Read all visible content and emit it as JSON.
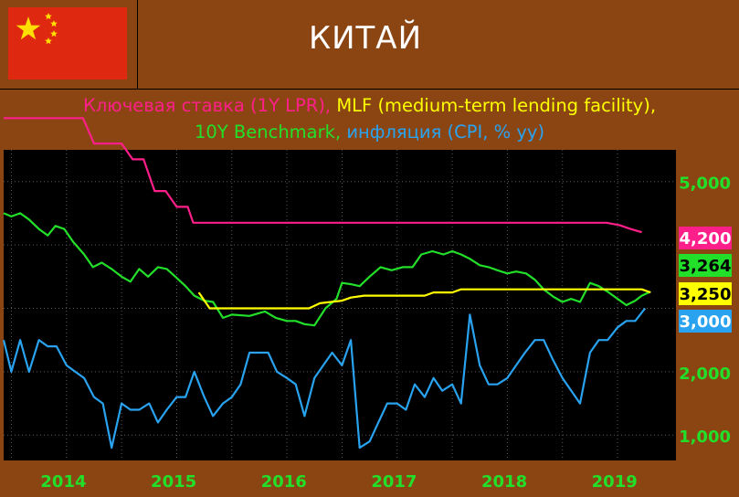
{
  "header": {
    "title": "КИТАЙ"
  },
  "subtitle": {
    "line1_pink": "Ключевая ставка (1Y LPR),",
    "line1_yellow": "MLF (medium-term lending facility),",
    "line2_green": "10Y Benchmark,",
    "line2_blue": "инфляция (CPI, % yy)"
  },
  "colors": {
    "background": "#8b4513",
    "plot_background": "#000000",
    "key_rate": "#ff1f8a",
    "mlf": "#ffff00",
    "bond_10y": "#22e02a",
    "cpi": "#29a3f0",
    "flag_red": "#de2910",
    "flag_star": "#ffde00"
  },
  "chart_data": {
    "type": "line",
    "x_unit": "year (decimal)",
    "xlim": [
      2013.93,
      2020.03
    ],
    "ylim": [
      0.6,
      5.5
    ],
    "grid": true,
    "x_tick_labels": [
      {
        "value": 2014.0,
        "label": "2014"
      },
      {
        "value": 2015.0,
        "label": "2015"
      },
      {
        "value": 2016.0,
        "label": "2016"
      },
      {
        "value": 2017.0,
        "label": "2017"
      },
      {
        "value": 2018.0,
        "label": "2018"
      },
      {
        "value": 2019.0,
        "label": "2019"
      }
    ],
    "y_tick_labels": [
      {
        "value": 1.0,
        "label": "1,000"
      },
      {
        "value": 2.0,
        "label": "2,000"
      },
      {
        "value": 5.0,
        "label": "5,000"
      }
    ],
    "y_gridlines": [
      1.0,
      2.0,
      3.0,
      4.0,
      5.0
    ],
    "x_gridlines": [
      2014.0,
      2014.5,
      2015.0,
      2015.5,
      2016.0,
      2016.5,
      2017.0,
      2017.5,
      2018.0,
      2018.5,
      2019.0,
      2019.5
    ],
    "last_value_labels": [
      {
        "series": "key_rate",
        "value": 4.2,
        "label": "4,200"
      },
      {
        "series": "bond_10y",
        "value": 3.264,
        "label": "3,264"
      },
      {
        "series": "mlf",
        "value": 3.25,
        "label": "3,250"
      },
      {
        "series": "cpi",
        "value": 3.0,
        "label": "3,000"
      }
    ],
    "series": [
      {
        "key": "key_rate",
        "points": [
          [
            2013.93,
            6.0
          ],
          [
            2014.1,
            6.0
          ],
          [
            2014.4,
            6.0
          ],
          [
            2014.65,
            6.0
          ],
          [
            2014.75,
            5.6
          ],
          [
            2015.0,
            5.6
          ],
          [
            2015.1,
            5.35
          ],
          [
            2015.2,
            5.35
          ],
          [
            2015.3,
            4.85
          ],
          [
            2015.4,
            4.85
          ],
          [
            2015.5,
            4.6
          ],
          [
            2015.6,
            4.6
          ],
          [
            2015.65,
            4.35
          ],
          [
            2016.0,
            4.35
          ],
          [
            2017.0,
            4.35
          ],
          [
            2018.0,
            4.35
          ],
          [
            2019.0,
            4.35
          ],
          [
            2019.4,
            4.35
          ],
          [
            2019.52,
            4.31
          ],
          [
            2019.62,
            4.25
          ],
          [
            2019.72,
            4.2
          ]
        ]
      },
      {
        "key": "bond_10y",
        "points": [
          [
            2013.93,
            4.5
          ],
          [
            2014.0,
            4.45
          ],
          [
            2014.08,
            4.5
          ],
          [
            2014.16,
            4.4
          ],
          [
            2014.25,
            4.25
          ],
          [
            2014.33,
            4.15
          ],
          [
            2014.4,
            4.3
          ],
          [
            2014.48,
            4.25
          ],
          [
            2014.56,
            4.05
          ],
          [
            2014.66,
            3.85
          ],
          [
            2014.74,
            3.65
          ],
          [
            2014.82,
            3.72
          ],
          [
            2014.91,
            3.62
          ],
          [
            2015.0,
            3.5
          ],
          [
            2015.08,
            3.42
          ],
          [
            2015.16,
            3.62
          ],
          [
            2015.24,
            3.5
          ],
          [
            2015.33,
            3.65
          ],
          [
            2015.41,
            3.62
          ],
          [
            2015.5,
            3.48
          ],
          [
            2015.58,
            3.35
          ],
          [
            2015.66,
            3.2
          ],
          [
            2015.75,
            3.12
          ],
          [
            2015.83,
            3.1
          ],
          [
            2015.92,
            2.85
          ],
          [
            2016.0,
            2.9
          ],
          [
            2016.16,
            2.88
          ],
          [
            2016.3,
            2.95
          ],
          [
            2016.4,
            2.85
          ],
          [
            2016.5,
            2.8
          ],
          [
            2016.58,
            2.8
          ],
          [
            2016.66,
            2.75
          ],
          [
            2016.75,
            2.73
          ],
          [
            2016.85,
            3.0
          ],
          [
            2016.95,
            3.15
          ],
          [
            2017.0,
            3.4
          ],
          [
            2017.08,
            3.38
          ],
          [
            2017.16,
            3.35
          ],
          [
            2017.25,
            3.5
          ],
          [
            2017.35,
            3.65
          ],
          [
            2017.45,
            3.6
          ],
          [
            2017.55,
            3.65
          ],
          [
            2017.64,
            3.65
          ],
          [
            2017.72,
            3.85
          ],
          [
            2017.82,
            3.9
          ],
          [
            2017.92,
            3.85
          ],
          [
            2018.0,
            3.9
          ],
          [
            2018.08,
            3.85
          ],
          [
            2018.16,
            3.78
          ],
          [
            2018.25,
            3.68
          ],
          [
            2018.33,
            3.65
          ],
          [
            2018.41,
            3.6
          ],
          [
            2018.5,
            3.55
          ],
          [
            2018.58,
            3.58
          ],
          [
            2018.67,
            3.55
          ],
          [
            2018.75,
            3.45
          ],
          [
            2018.83,
            3.3
          ],
          [
            2018.92,
            3.18
          ],
          [
            2019.0,
            3.1
          ],
          [
            2019.08,
            3.15
          ],
          [
            2019.16,
            3.1
          ],
          [
            2019.25,
            3.4
          ],
          [
            2019.33,
            3.35
          ],
          [
            2019.42,
            3.25
          ],
          [
            2019.5,
            3.15
          ],
          [
            2019.58,
            3.05
          ],
          [
            2019.66,
            3.12
          ],
          [
            2019.72,
            3.2
          ],
          [
            2019.8,
            3.264
          ]
        ]
      },
      {
        "key": "mlf",
        "points": [
          [
            2015.7,
            3.25
          ],
          [
            2015.8,
            3.0
          ],
          [
            2016.0,
            3.0
          ],
          [
            2016.5,
            3.0
          ],
          [
            2016.7,
            3.0
          ],
          [
            2016.8,
            3.08
          ],
          [
            2017.0,
            3.12
          ],
          [
            2017.08,
            3.17
          ],
          [
            2017.2,
            3.2
          ],
          [
            2017.75,
            3.2
          ],
          [
            2017.83,
            3.25
          ],
          [
            2018.0,
            3.25
          ],
          [
            2018.08,
            3.3
          ],
          [
            2018.5,
            3.3
          ],
          [
            2019.0,
            3.3
          ],
          [
            2019.25,
            3.3
          ],
          [
            2019.72,
            3.3
          ],
          [
            2019.8,
            3.25
          ]
        ]
      },
      {
        "key": "cpi",
        "points": [
          [
            2013.93,
            2.5
          ],
          [
            2014.0,
            2.0
          ],
          [
            2014.08,
            2.5
          ],
          [
            2014.16,
            2.0
          ],
          [
            2014.25,
            2.5
          ],
          [
            2014.33,
            2.4
          ],
          [
            2014.41,
            2.4
          ],
          [
            2014.5,
            2.1
          ],
          [
            2014.58,
            2.0
          ],
          [
            2014.66,
            1.9
          ],
          [
            2014.75,
            1.6
          ],
          [
            2014.83,
            1.5
          ],
          [
            2014.91,
            0.8
          ],
          [
            2015.0,
            1.5
          ],
          [
            2015.08,
            1.4
          ],
          [
            2015.16,
            1.4
          ],
          [
            2015.25,
            1.5
          ],
          [
            2015.33,
            1.2
          ],
          [
            2015.41,
            1.4
          ],
          [
            2015.5,
            1.6
          ],
          [
            2015.58,
            1.6
          ],
          [
            2015.66,
            2.0
          ],
          [
            2015.75,
            1.6
          ],
          [
            2015.83,
            1.3
          ],
          [
            2015.92,
            1.5
          ],
          [
            2016.0,
            1.6
          ],
          [
            2016.08,
            1.8
          ],
          [
            2016.16,
            2.3
          ],
          [
            2016.25,
            2.3
          ],
          [
            2016.33,
            2.3
          ],
          [
            2016.41,
            2.0
          ],
          [
            2016.5,
            1.9
          ],
          [
            2016.58,
            1.8
          ],
          [
            2016.66,
            1.3
          ],
          [
            2016.75,
            1.9
          ],
          [
            2016.83,
            2.1
          ],
          [
            2016.91,
            2.3
          ],
          [
            2017.0,
            2.1
          ],
          [
            2017.08,
            2.5
          ],
          [
            2017.16,
            0.8
          ],
          [
            2017.25,
            0.9
          ],
          [
            2017.33,
            1.2
          ],
          [
            2017.41,
            1.5
          ],
          [
            2017.5,
            1.5
          ],
          [
            2017.58,
            1.4
          ],
          [
            2017.66,
            1.8
          ],
          [
            2017.75,
            1.6
          ],
          [
            2017.83,
            1.9
          ],
          [
            2017.91,
            1.7
          ],
          [
            2018.0,
            1.8
          ],
          [
            2018.08,
            1.5
          ],
          [
            2018.16,
            2.9
          ],
          [
            2018.25,
            2.1
          ],
          [
            2018.33,
            1.8
          ],
          [
            2018.41,
            1.8
          ],
          [
            2018.5,
            1.9
          ],
          [
            2018.58,
            2.1
          ],
          [
            2018.66,
            2.3
          ],
          [
            2018.75,
            2.5
          ],
          [
            2018.83,
            2.5
          ],
          [
            2018.91,
            2.2
          ],
          [
            2019.0,
            1.9
          ],
          [
            2019.08,
            1.7
          ],
          [
            2019.16,
            1.5
          ],
          [
            2019.25,
            2.3
          ],
          [
            2019.33,
            2.5
          ],
          [
            2019.41,
            2.5
          ],
          [
            2019.5,
            2.7
          ],
          [
            2019.58,
            2.8
          ],
          [
            2019.66,
            2.8
          ],
          [
            2019.75,
            3.0
          ]
        ]
      }
    ]
  }
}
